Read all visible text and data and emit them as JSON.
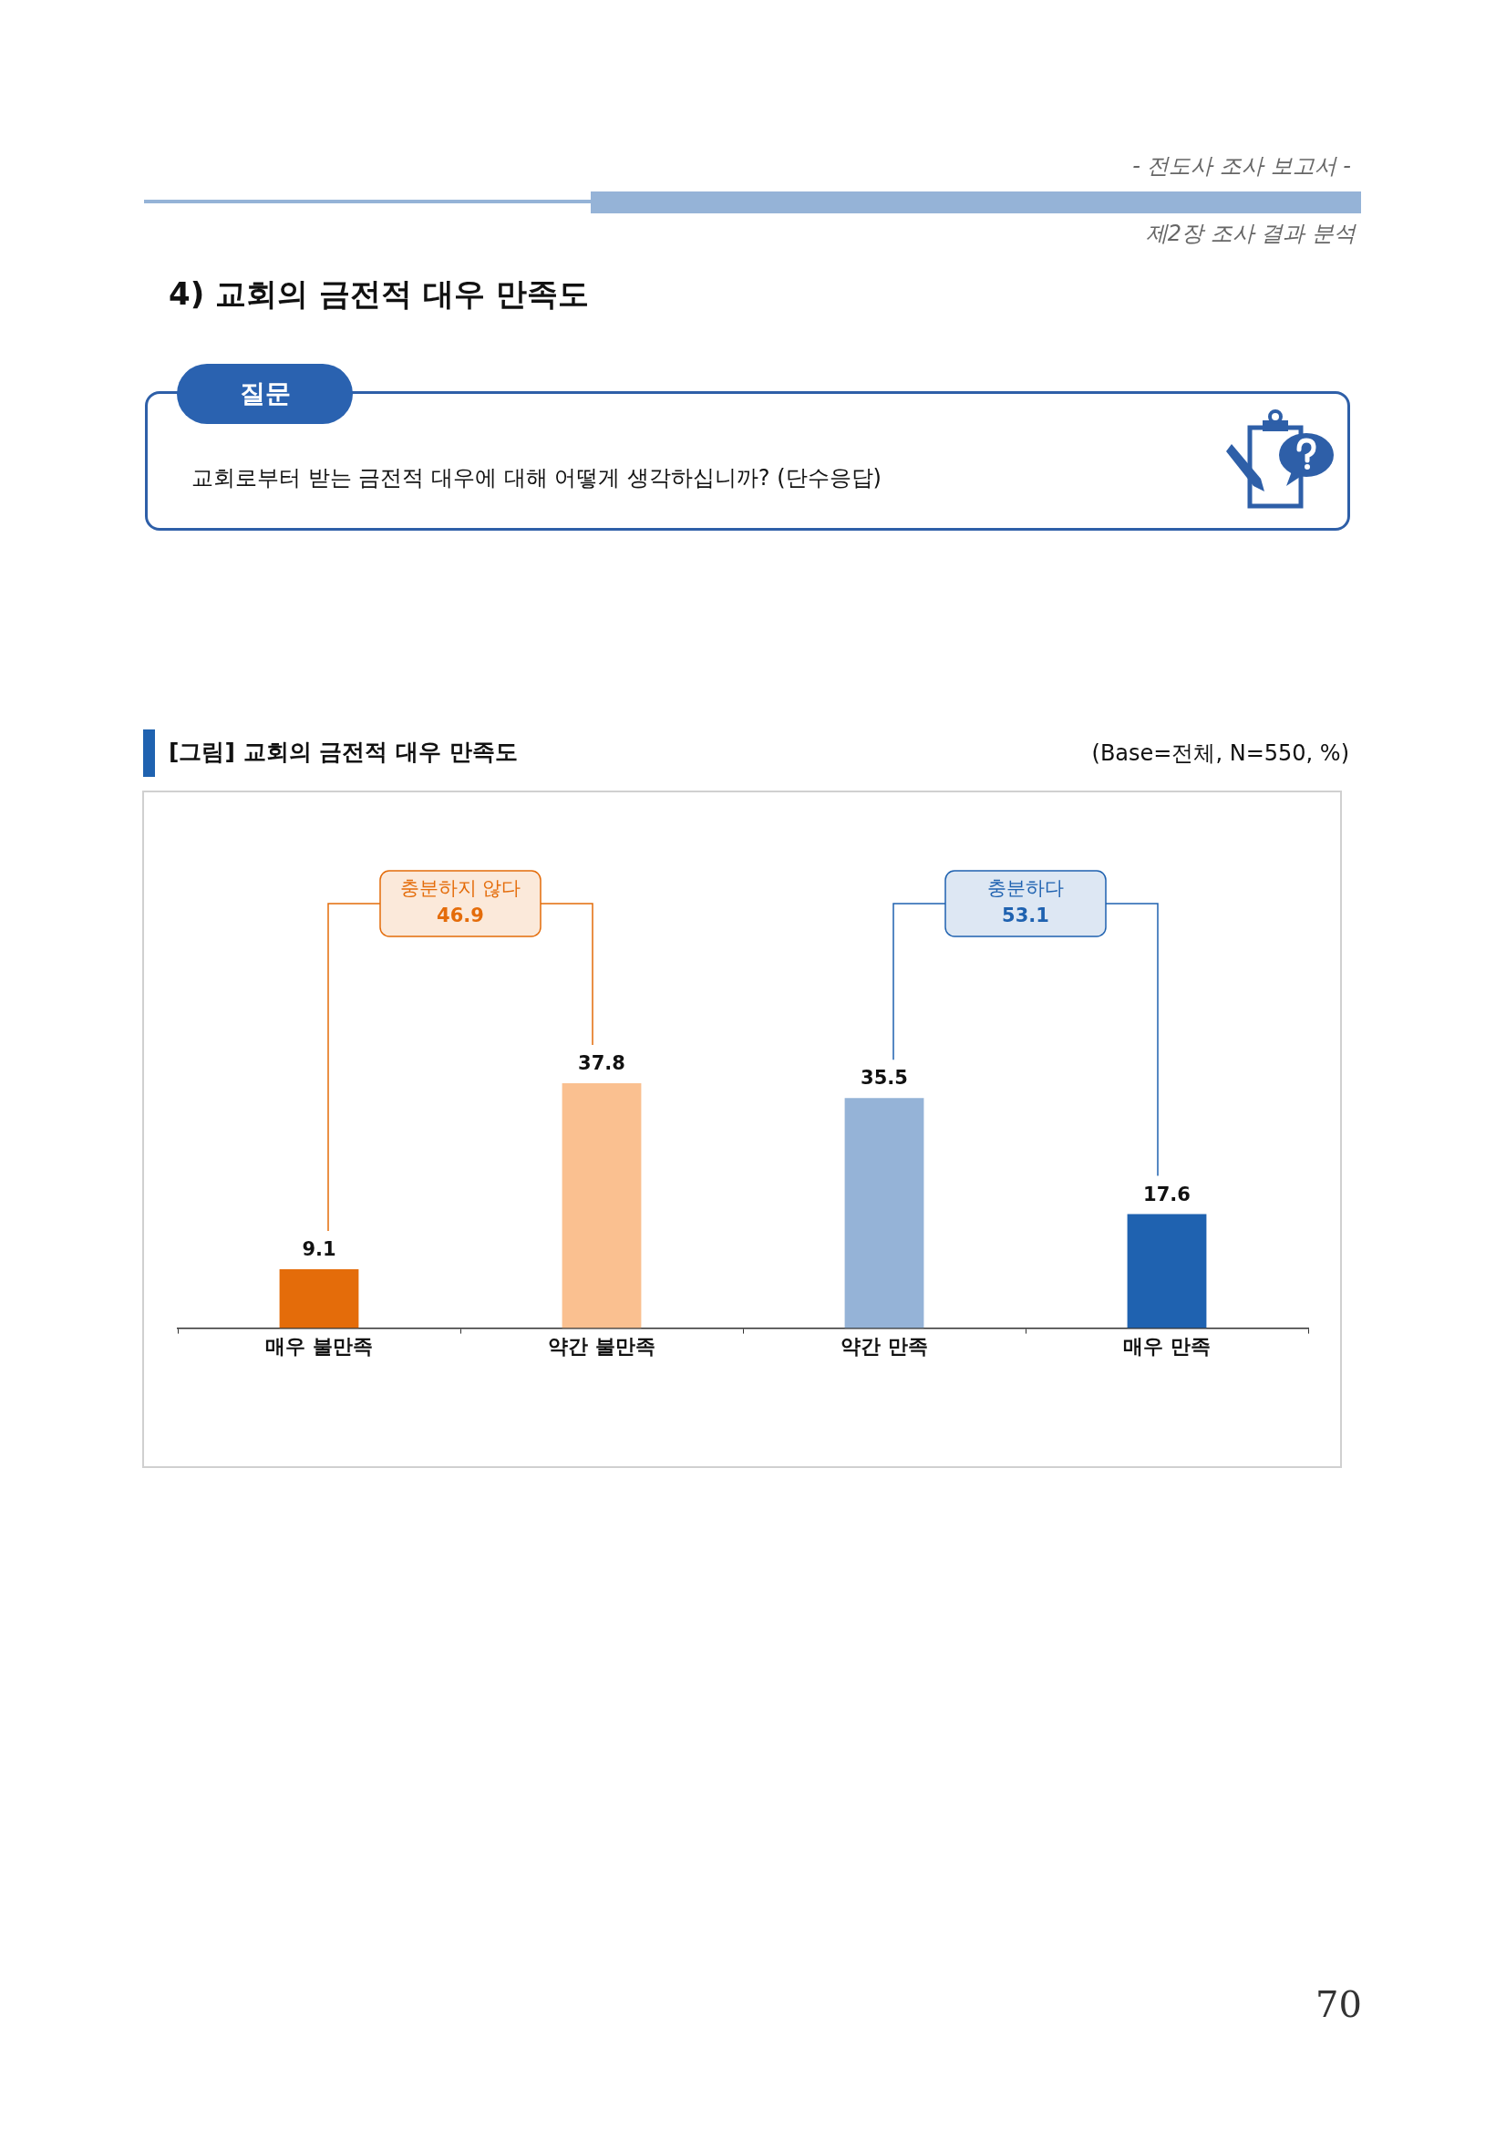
{
  "chart_data": {
    "type": "bar",
    "title": "[그림] 교회의 금전적 대우 만족도",
    "subtitle": "(Base=전체, N=550, %)",
    "categories": [
      "매우 불만족",
      "약간 불만족",
      "약간 만족",
      "매우 만족"
    ],
    "values": [
      9.1,
      37.8,
      35.5,
      17.6
    ],
    "colors": [
      "#e46c0a",
      "#fac090",
      "#95b3d7",
      "#1f62b0"
    ],
    "data_labels": true,
    "grid": false,
    "legend": false,
    "annotations": [
      "- 전도사 조사 보고서 -",
      "제2장 조사 결과 분석",
      "4) 교회의 금전적 대우 만족도",
      "질문",
      "교회로부터 받는 금전적 대우에 대해 어떻게 생각하십니까? (단수응답)",
      "충분하지 않다\n46.9",
      "충분하다\n53.1",
      "70"
    ]
  }
}
